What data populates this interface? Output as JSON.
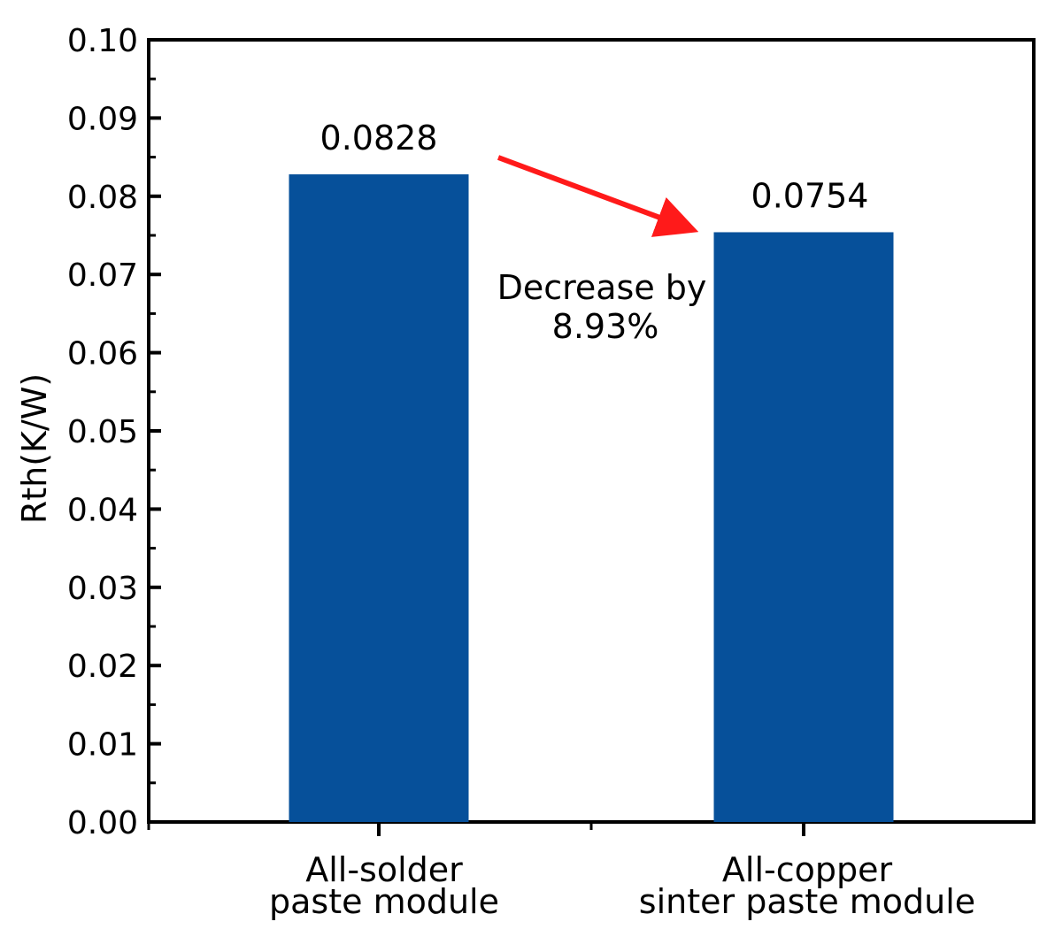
{
  "chart_data": {
    "type": "bar",
    "categories": [
      [
        "All-solder",
        "paste module"
      ],
      [
        "All-copper",
        "sinter paste module"
      ]
    ],
    "values": [
      0.0828,
      0.0754
    ],
    "value_labels": [
      "0.0828",
      "0.0754"
    ],
    "ylabel": "Rth(K/W)",
    "xlabel": "",
    "ylim": [
      0,
      0.1
    ],
    "yticks": [
      "0.00",
      "0.01",
      "0.02",
      "0.03",
      "0.04",
      "0.05",
      "0.06",
      "0.07",
      "0.08",
      "0.09",
      "0.10"
    ],
    "bar_color": "#06509a",
    "grid": false,
    "annotation": {
      "lines": [
        "Decrease by",
        "8.93%"
      ],
      "arrow_color": "#ff1a1a",
      "arrow_from": "bar-1-top",
      "arrow_to": "bar-2-top"
    }
  }
}
